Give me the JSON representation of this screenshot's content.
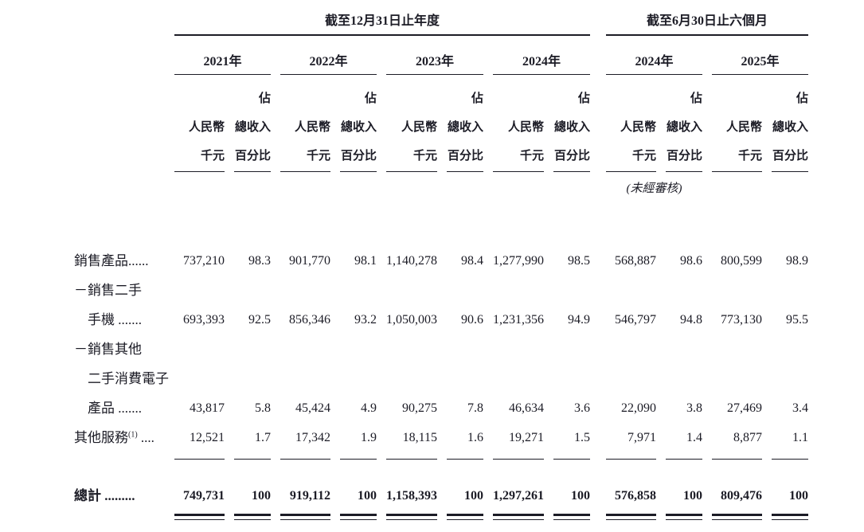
{
  "colors": {
    "background": "#ffffff",
    "text": "#1c1c26"
  },
  "table": {
    "sections": [
      {
        "title": "截至12月31日止年度"
      },
      {
        "title": "截至6月30日止六個月"
      }
    ],
    "years": [
      "2021年",
      "2022年",
      "2023年",
      "2024年",
      "2024年",
      "2025年"
    ],
    "column_headers": {
      "amount_line1": "人民幣",
      "amount_line2": "千元",
      "pct_line1": "佔",
      "pct_line2": "總收入",
      "pct_line3": "百分比"
    },
    "unaudited_note": "(未經審核)",
    "rows": [
      {
        "label_lines": [
          "銷售產品......"
        ],
        "values": [
          "737,210",
          "98.3",
          "901,770",
          "98.1",
          "1,140,278",
          "98.4",
          "1,277,990",
          "98.5",
          "568,887",
          "98.6",
          "800,599",
          "98.9"
        ]
      },
      {
        "label_lines": [
          "－銷售二手",
          "手機 ......."
        ],
        "values": [
          "693,393",
          "92.5",
          "856,346",
          "93.2",
          "1,050,003",
          "90.6",
          "1,231,356",
          "94.9",
          "546,797",
          "94.8",
          "773,130",
          "95.5"
        ]
      },
      {
        "label_lines": [
          "－銷售其他",
          "二手消費電子",
          "產品 ......."
        ],
        "values": [
          "43,817",
          "5.8",
          "45,424",
          "4.9",
          "90,275",
          "7.8",
          "46,634",
          "3.6",
          "22,090",
          "3.8",
          "27,469",
          "3.4"
        ]
      },
      {
        "label_main": "其他服務",
        "label_sup": "(1)",
        "label_tail": " ....",
        "values": [
          "12,521",
          "1.7",
          "17,342",
          "1.9",
          "18,115",
          "1.6",
          "19,271",
          "1.5",
          "7,971",
          "1.4",
          "8,877",
          "1.1"
        ]
      }
    ],
    "total_row": {
      "label": "總計 .........",
      "values": [
        "749,731",
        "100",
        "919,112",
        "100",
        "1,158,393",
        "100",
        "1,297,261",
        "100",
        "576,858",
        "100",
        "809,476",
        "100"
      ]
    }
  }
}
